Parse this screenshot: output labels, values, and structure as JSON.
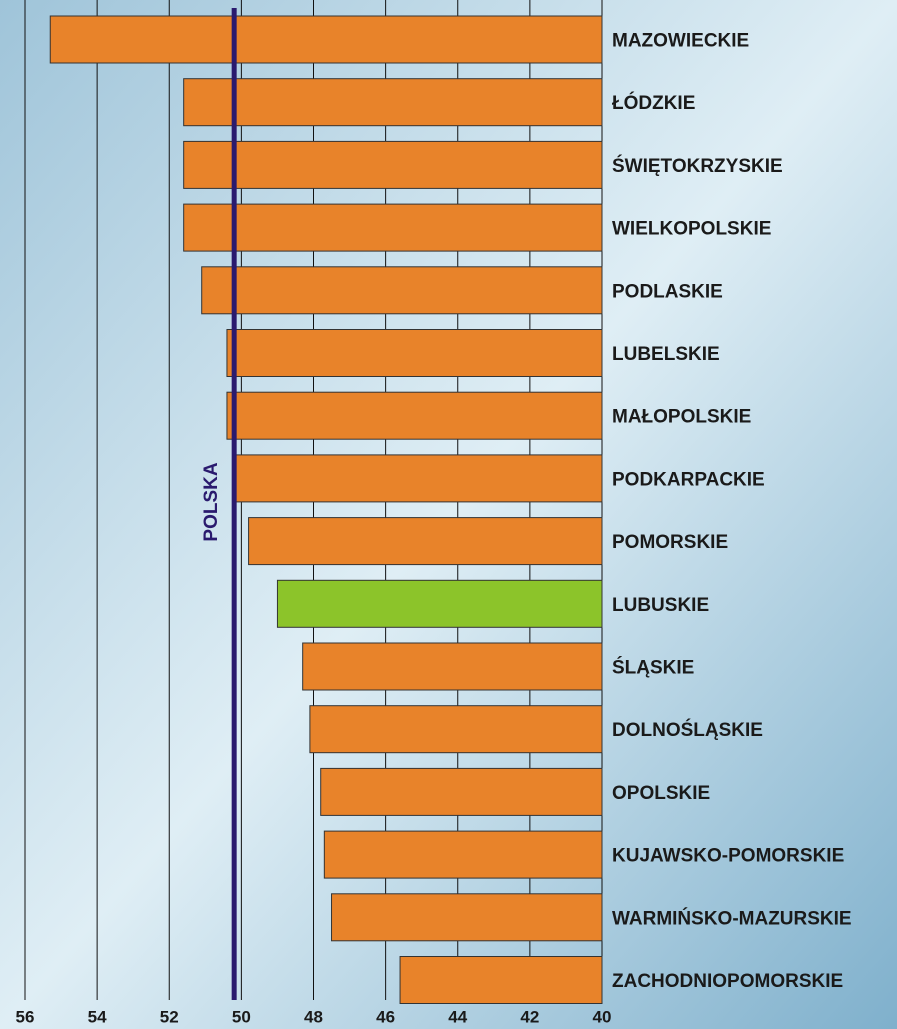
{
  "chart_data": {
    "type": "bar",
    "orientation": "horizontal",
    "categories": [
      "MAZOWIECKIE",
      "ŁÓDZKIE",
      "ŚWIĘTOKRZYSKIE",
      "WIELKOPOLSKIE",
      "PODLASKIE",
      "LUBELSKIE",
      "MAŁOPOLSKIE",
      "PODKARPACKIE",
      "POMORSKIE",
      "LUBUSKIE",
      "ŚLĄSKIE",
      "DOLNOŚLĄSKIE",
      "OPOLSKIE",
      "KUJAWSKO-POMORSKIE",
      "WARMIŃSKO-MAZURSKIE",
      "ZACHODNIOPOMORSKIE"
    ],
    "values": [
      55.3,
      51.6,
      51.6,
      51.6,
      51.1,
      50.4,
      50.4,
      50.2,
      49.8,
      49.0,
      48.3,
      48.1,
      47.8,
      47.7,
      47.5,
      45.6
    ],
    "colors": [
      "#e8832a",
      "#e8832a",
      "#e8832a",
      "#e8832a",
      "#e8832a",
      "#e8832a",
      "#e8832a",
      "#e8832a",
      "#e8832a",
      "#8cc42a",
      "#e8832a",
      "#e8832a",
      "#e8832a",
      "#e8832a",
      "#e8832a",
      "#e8832a"
    ],
    "xlim": [
      56,
      40
    ],
    "xticks": [
      56,
      54,
      52,
      50,
      48,
      46,
      44,
      42,
      40
    ],
    "grid": true,
    "reference_line": {
      "label": "POLSKA",
      "value": 50.2,
      "color": "#2a1a6e"
    }
  }
}
